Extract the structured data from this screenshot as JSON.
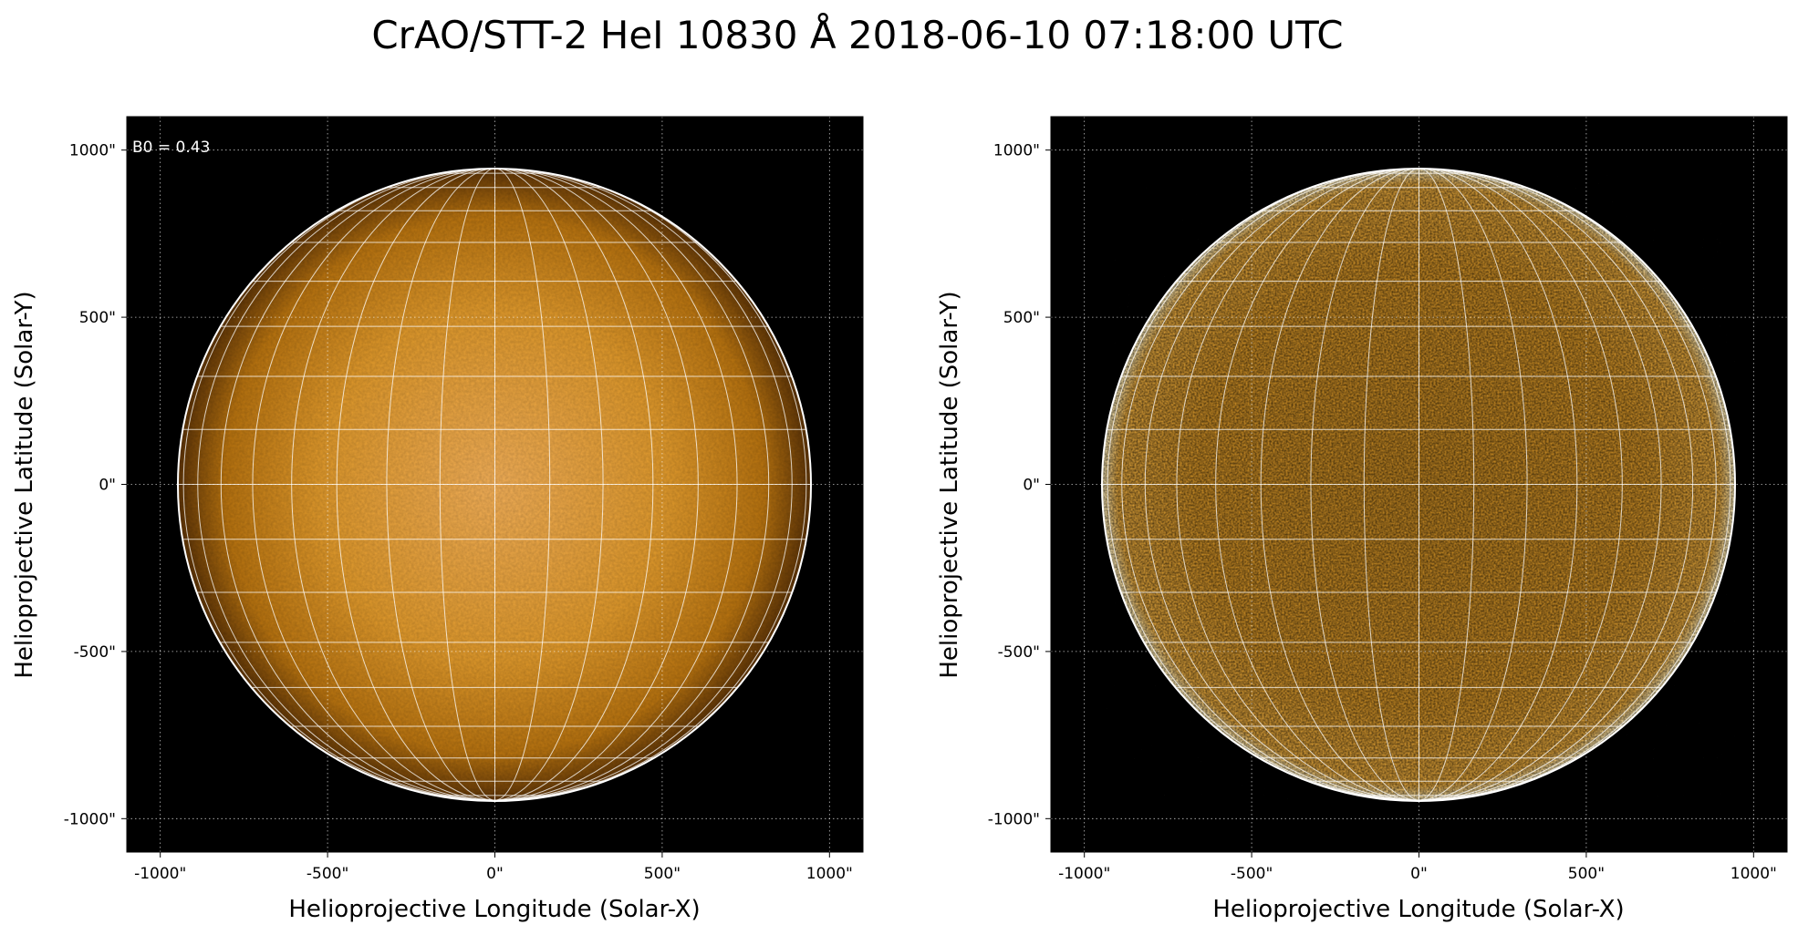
{
  "figure": {
    "title": "CrAO/STT-2 HeI 10830 Å 2018-06-10 07:18:00 UTC"
  },
  "panels": [
    {
      "id": "left",
      "x_label": "Helioprojective Longitude (Solar-X)",
      "y_label": "Helioprojective Latitude (Solar-Y)",
      "annotation": "B0 = 0.43",
      "x_ticks": [
        "-1000\"",
        "-500\"",
        "0\"",
        "500\"",
        "1000\""
      ],
      "y_ticks": [
        "1000\"",
        "500\"",
        "0\"",
        "-500\"",
        "-1000\""
      ],
      "image_style": "smooth"
    },
    {
      "id": "right",
      "x_label": "Helioprojective Longitude (Solar-X)",
      "y_label": "Helioprojective Latitude (Solar-Y)",
      "annotation": "",
      "x_ticks": [
        "-1000\"",
        "-500\"",
        "0\"",
        "500\"",
        "1000\""
      ],
      "y_ticks": [
        "1000\"",
        "500\"",
        "0\"",
        "-500\"",
        "-1000\""
      ],
      "image_style": "contrast"
    }
  ],
  "axes": {
    "x_range_arcsec": [
      -1100,
      1100
    ],
    "y_range_arcsec": [
      -1100,
      1100
    ],
    "tick_values_arcsec": [
      -1000,
      -500,
      0,
      500,
      1000
    ],
    "solar_radius_arcsec": 945,
    "grid_spacing_deg": 10,
    "b0_deg": 0.43
  },
  "colors": {
    "background": "#000000",
    "disk_center": "#f2a43a",
    "disk_mid": "#d98a1f",
    "disk_limb": "#6a3c06",
    "grid": "#ffffff",
    "limb_outline": "#ffffff"
  }
}
